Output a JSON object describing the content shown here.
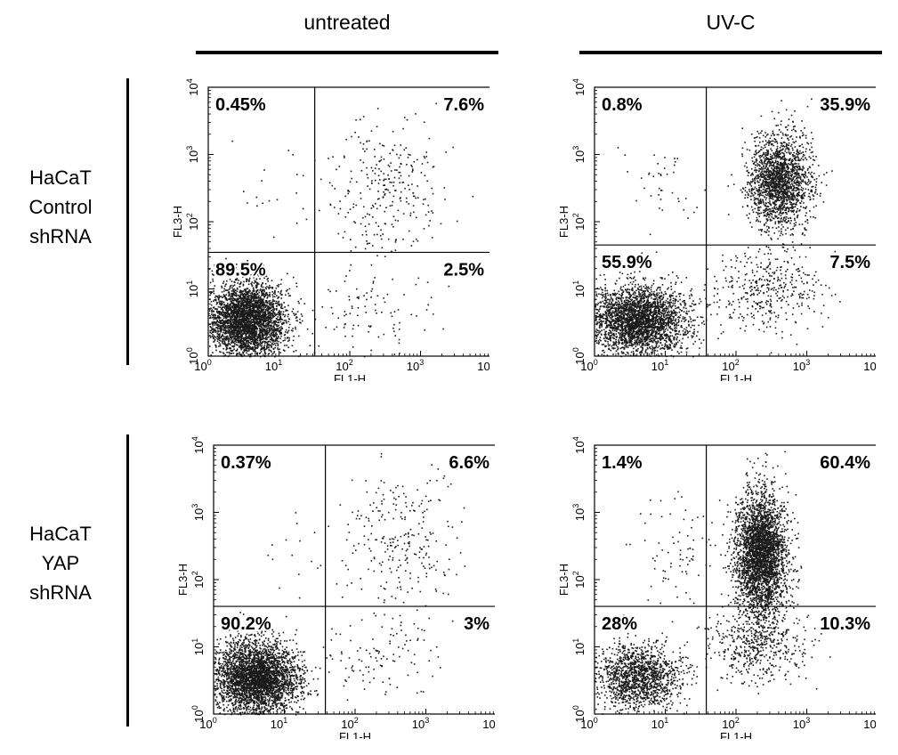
{
  "columns": [
    {
      "label": "untreated"
    },
    {
      "label": "UV-C"
    }
  ],
  "rows": [
    {
      "line1": "HaCaT",
      "line2": "Control",
      "line3": "shRNA"
    },
    {
      "line1": "HaCaT",
      "line2": "YAP",
      "line3": "shRNA"
    }
  ],
  "colors": {
    "dots": "#1a1a1a",
    "axes": "#000000",
    "background": "#ffffff"
  },
  "chart_data": [
    {
      "type": "scatter",
      "title": "",
      "xlabel": "FL1-H",
      "ylabel": "FL3-H",
      "x_scale": "log",
      "y_scale": "log",
      "xlim": [
        1,
        10000
      ],
      "ylim": [
        1,
        10000
      ],
      "x_ticks": [
        "10^0",
        "10^1",
        "10^2",
        "10^3",
        "10^4"
      ],
      "y_ticks": [
        "10^0",
        "10^1",
        "10^2",
        "10^3",
        "10^4"
      ],
      "gate": {
        "x": 32,
        "y": 35
      },
      "quadrants": {
        "upper_left": "0.45%",
        "upper_right": "7.6%",
        "lower_left": "89.5%",
        "lower_right": "2.5%"
      },
      "row": "HaCaT Control shRNA",
      "column": "untreated",
      "clusters": [
        {
          "x": 3.5,
          "y": 3.5,
          "spread_x": 0.28,
          "spread_y": 0.28,
          "fraction": 0.895
        },
        {
          "x": 300,
          "y": 300,
          "spread_x": 0.38,
          "spread_y": 0.5,
          "fraction": 0.076
        },
        {
          "x": 200,
          "y": 5,
          "spread_x": 0.45,
          "spread_y": 0.35,
          "fraction": 0.025
        },
        {
          "x": 8,
          "y": 300,
          "spread_x": 0.3,
          "spread_y": 0.4,
          "fraction": 0.0045
        }
      ],
      "n_points": 3800
    },
    {
      "type": "scatter",
      "title": "",
      "xlabel": "FL1-H",
      "ylabel": "FL3-H",
      "x_scale": "log",
      "y_scale": "log",
      "xlim": [
        1,
        10000
      ],
      "ylim": [
        1,
        10000
      ],
      "x_ticks": [
        "10^0",
        "10^1",
        "10^2",
        "10^3",
        "10^4"
      ],
      "y_ticks": [
        "10^0",
        "10^1",
        "10^2",
        "10^3",
        "10^4"
      ],
      "gate": {
        "x": 38,
        "y": 45
      },
      "quadrants": {
        "upper_left": "0.8%",
        "upper_right": "35.9%",
        "lower_left": "55.9%",
        "lower_right": "7.5%"
      },
      "row": "HaCaT Control shRNA",
      "column": "UV-C",
      "clusters": [
        {
          "x": 4,
          "y": 3.5,
          "spread_x": 0.35,
          "spread_y": 0.25,
          "fraction": 0.559
        },
        {
          "x": 400,
          "y": 400,
          "spread_x": 0.22,
          "spread_y": 0.35,
          "fraction": 0.359
        },
        {
          "x": 300,
          "y": 10,
          "spread_x": 0.4,
          "spread_y": 0.3,
          "fraction": 0.075
        },
        {
          "x": 10,
          "y": 300,
          "spread_x": 0.3,
          "spread_y": 0.4,
          "fraction": 0.008
        }
      ],
      "n_points": 5200
    },
    {
      "type": "scatter",
      "title": "",
      "xlabel": "FL1-H",
      "ylabel": "FL3-H",
      "x_scale": "log",
      "y_scale": "log",
      "xlim": [
        1,
        10000
      ],
      "ylim": [
        1,
        10000
      ],
      "x_ticks": [
        "10^0",
        "10^1",
        "10^2",
        "10^3",
        "10^4"
      ],
      "y_ticks": [
        "10^0",
        "10^1",
        "10^2",
        "10^3",
        "10^4"
      ],
      "gate": {
        "x": 38,
        "y": 40
      },
      "quadrants": {
        "upper_left": "0.37%",
        "upper_right": "6.6%",
        "lower_left": "90.2%",
        "lower_right": "3%"
      },
      "row": "HaCaT YAP shRNA",
      "column": "untreated",
      "clusters": [
        {
          "x": 4,
          "y": 3.5,
          "spread_x": 0.3,
          "spread_y": 0.28,
          "fraction": 0.902
        },
        {
          "x": 400,
          "y": 400,
          "spread_x": 0.4,
          "spread_y": 0.5,
          "fraction": 0.066
        },
        {
          "x": 250,
          "y": 8,
          "spread_x": 0.45,
          "spread_y": 0.35,
          "fraction": 0.03
        },
        {
          "x": 10,
          "y": 300,
          "spread_x": 0.3,
          "spread_y": 0.4,
          "fraction": 0.0037
        }
      ],
      "n_points": 3800
    },
    {
      "type": "scatter",
      "title": "",
      "xlabel": "FL1-H",
      "ylabel": "FL3-H",
      "x_scale": "log",
      "y_scale": "log",
      "xlim": [
        1,
        10000
      ],
      "ylim": [
        1,
        10000
      ],
      "x_ticks": [
        "10^0",
        "10^1",
        "10^2",
        "10^3",
        "10^4"
      ],
      "y_ticks": [
        "10^0",
        "10^1",
        "10^2",
        "10^3",
        "10^4"
      ],
      "gate": {
        "x": 38,
        "y": 40
      },
      "quadrants": {
        "upper_left": "1.4%",
        "upper_right": "60.4%",
        "lower_left": "28%",
        "lower_right": "10.3%"
      },
      "row": "HaCaT YAP shRNA",
      "column": "UV-C",
      "clusters": [
        {
          "x": 4,
          "y": 3.5,
          "spread_x": 0.3,
          "spread_y": 0.25,
          "fraction": 0.28
        },
        {
          "x": 220,
          "y": 250,
          "spread_x": 0.18,
          "spread_y": 0.45,
          "fraction": 0.604
        },
        {
          "x": 200,
          "y": 12,
          "spread_x": 0.35,
          "spread_y": 0.3,
          "fraction": 0.103
        },
        {
          "x": 15,
          "y": 300,
          "spread_x": 0.3,
          "spread_y": 0.4,
          "fraction": 0.014
        }
      ],
      "n_points": 5200
    }
  ]
}
